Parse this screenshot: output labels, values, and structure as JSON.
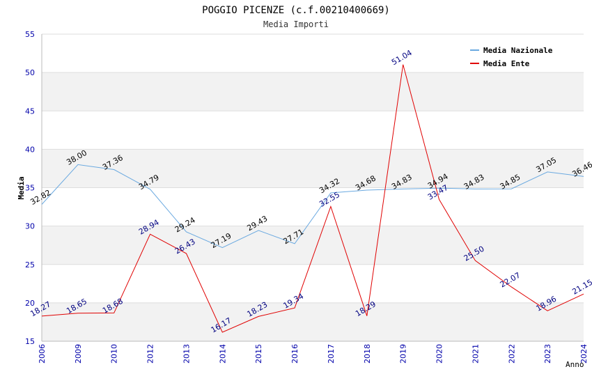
{
  "chart_data": {
    "type": "line",
    "title": "POGGIO PICENZE (c.f.00210400669)",
    "subtitle": "Media Importi",
    "xlabel": "Anno",
    "ylabel": "Media",
    "ylim": [
      15,
      55
    ],
    "yticks": [
      "15",
      "20",
      "25",
      "30",
      "35",
      "40",
      "45",
      "50",
      "55"
    ],
    "categories": [
      "2006",
      "2009",
      "2010",
      "2012",
      "2013",
      "2014",
      "2015",
      "2016",
      "2017",
      "2018",
      "2019",
      "2020",
      "2021",
      "2022",
      "2023",
      "2024"
    ],
    "series": [
      {
        "name": "Media Nazionale",
        "color": "#6aa9e0",
        "label_color": "#000000",
        "values": [
          32.82,
          38.0,
          37.36,
          34.79,
          29.24,
          27.19,
          29.43,
          27.71,
          34.32,
          34.68,
          34.83,
          34.94,
          34.83,
          34.85,
          37.05,
          36.46
        ],
        "labels": [
          "32.82",
          "38.00",
          "37.36",
          "34.79",
          "29.24",
          "27.19",
          "29.43",
          "27.71",
          "34.32",
          "34.68",
          "34.83",
          "34.94",
          "34.83",
          "34.85",
          "37.05",
          "36.46"
        ]
      },
      {
        "name": "Media Ente",
        "color": "#e00000",
        "label_color": "#000080",
        "values": [
          18.27,
          18.65,
          18.68,
          28.94,
          26.43,
          16.17,
          18.23,
          19.34,
          32.55,
          18.29,
          51.04,
          33.47,
          25.5,
          22.07,
          18.96,
          21.15
        ],
        "labels": [
          "18.27",
          "18.65",
          "18.68",
          "28.94",
          "26.43",
          "16.17",
          "18.23",
          "19.34",
          "32.55",
          "18.29",
          "51.04",
          "33.47",
          "25.50",
          "22.07",
          "18.96",
          "21.15"
        ]
      }
    ],
    "grid": true,
    "legend_position": "top-right",
    "colors": {
      "axis_labels": "#0000aa",
      "band": "#f2f2f2",
      "grid": "#dddddd"
    }
  }
}
